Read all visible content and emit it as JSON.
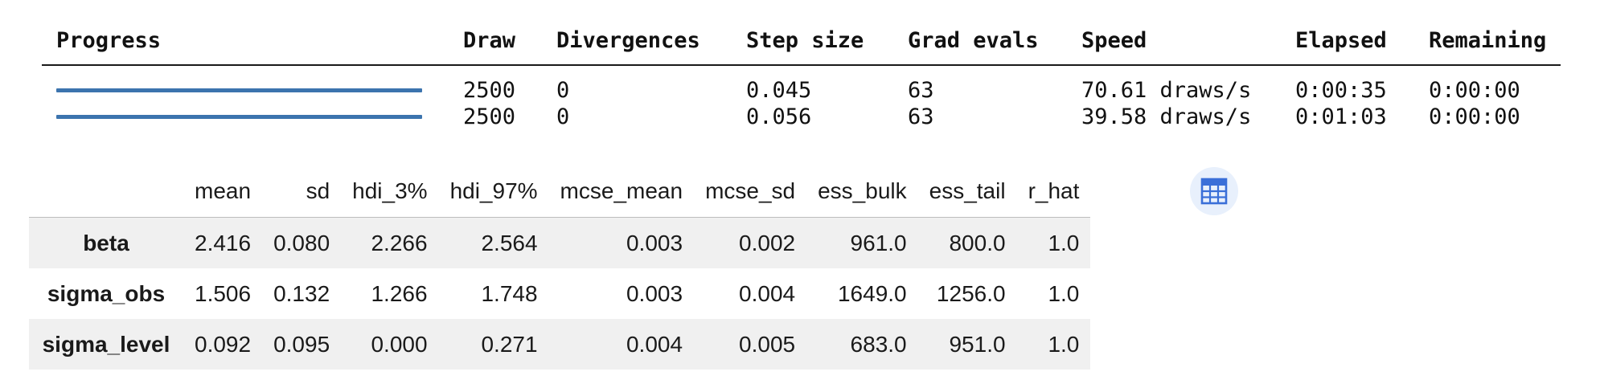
{
  "progress": {
    "headers": [
      "Progress",
      "Draw",
      "Divergences",
      "Step size",
      "Grad evals",
      "Speed",
      "Elapsed",
      "Remaining"
    ],
    "rows": [
      {
        "progress": 1.0,
        "draw": "2500",
        "divergences": "0",
        "step_size": "0.045",
        "grad_evals": "63",
        "speed": "70.61 draws/s",
        "elapsed": "0:00:35",
        "remaining": "0:00:00"
      },
      {
        "progress": 1.0,
        "draw": "2500",
        "divergences": "0",
        "step_size": "0.056",
        "grad_evals": "63",
        "speed": "39.58 draws/s",
        "elapsed": "0:01:03",
        "remaining": "0:00:00"
      }
    ],
    "bar_color": "#3c74ae"
  },
  "summary": {
    "columns": [
      "mean",
      "sd",
      "hdi_3%",
      "hdi_97%",
      "mcse_mean",
      "mcse_sd",
      "ess_bulk",
      "ess_tail",
      "r_hat"
    ],
    "rows": [
      {
        "name": "beta",
        "values": [
          "2.416",
          "0.080",
          "2.266",
          "2.564",
          "0.003",
          "0.002",
          "961.0",
          "800.0",
          "1.0"
        ]
      },
      {
        "name": "sigma_obs",
        "values": [
          "1.506",
          "0.132",
          "1.266",
          "1.748",
          "0.003",
          "0.004",
          "1649.0",
          "1256.0",
          "1.0"
        ]
      },
      {
        "name": "sigma_level",
        "values": [
          "0.092",
          "0.095",
          "0.000",
          "0.271",
          "0.004",
          "0.005",
          "683.0",
          "951.0",
          "1.0"
        ]
      }
    ]
  },
  "icons": {
    "table_button": "table-grid-icon",
    "accent": "#3a6fd8"
  }
}
